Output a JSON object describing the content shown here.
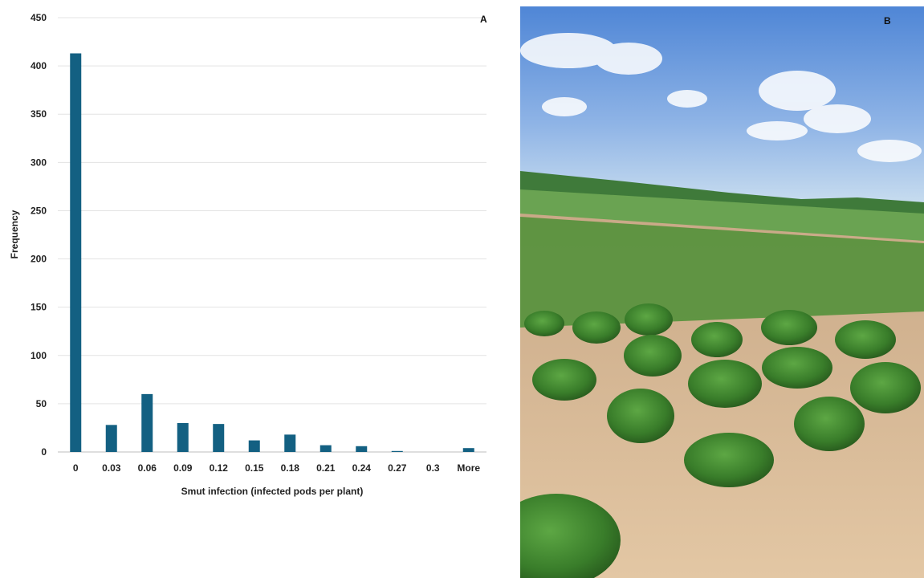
{
  "panel_a": {
    "letter": "A"
  },
  "panel_b": {
    "letter": "B"
  },
  "chart_data": {
    "type": "bar",
    "xlabel": "Smut infection (infected pods per plant)",
    "ylabel": "Frequency",
    "categories": [
      "0",
      "0.03",
      "0.06",
      "0.09",
      "0.12",
      "0.15",
      "0.18",
      "0.21",
      "0.24",
      "0.27",
      "0.3",
      "More"
    ],
    "values": [
      413,
      28,
      60,
      30,
      29,
      12,
      18,
      7,
      6,
      1,
      0,
      4
    ],
    "ylim": [
      0,
      450
    ],
    "yticks": [
      0,
      50,
      100,
      150,
      200,
      250,
      300,
      350,
      400,
      450
    ],
    "grid": true,
    "bar_color": "#136082"
  }
}
